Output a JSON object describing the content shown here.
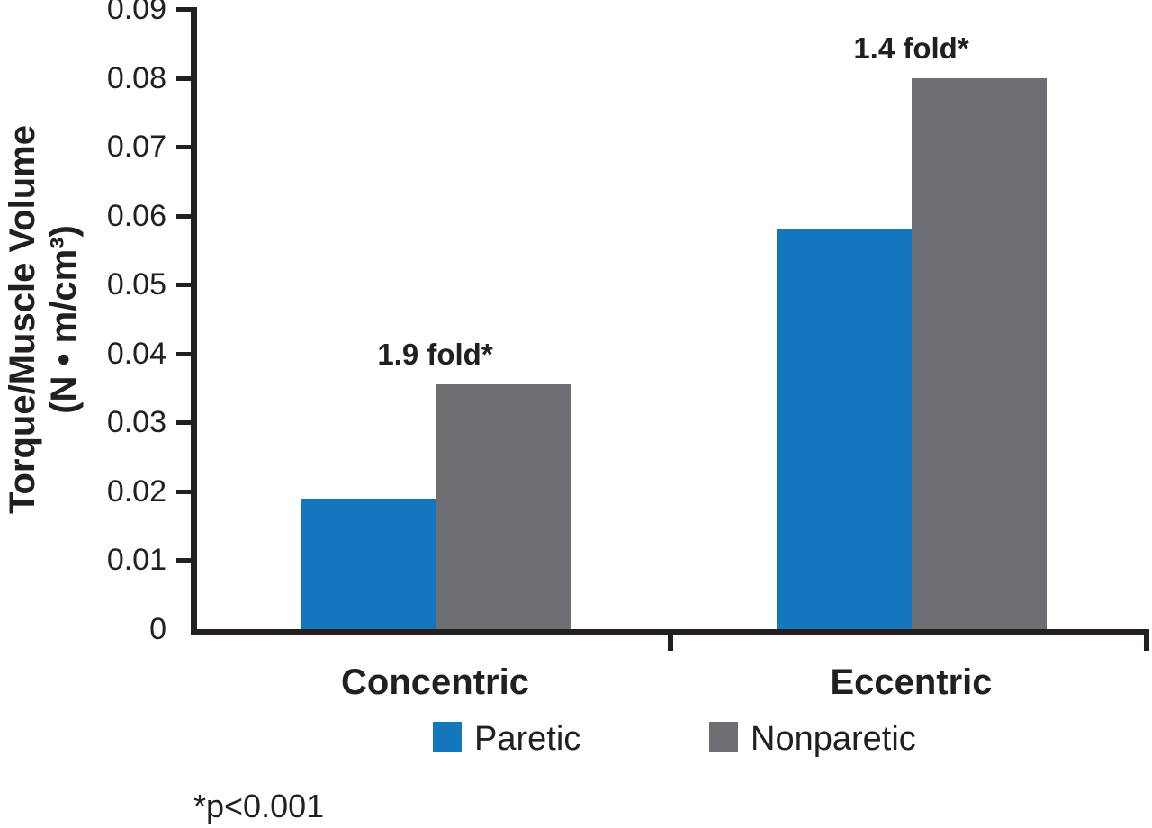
{
  "chart_data": {
    "type": "bar",
    "categories": [
      "Concentric",
      "Eccentric"
    ],
    "series": [
      {
        "name": "Paretic",
        "color": "#1476BC",
        "values": [
          0.019,
          0.058
        ]
      },
      {
        "name": "Nonparetic",
        "color": "#6E6F72",
        "values": [
          0.0355,
          0.08
        ]
      }
    ],
    "annotations": [
      {
        "category": "Concentric",
        "text": "1.9 fold*"
      },
      {
        "category": "Eccentric",
        "text": "1.4 fold*"
      }
    ],
    "ylabel_line1": "Torque/Muscle Volume",
    "ylabel_line2": "(N • m/cm³)",
    "xlabel": "",
    "title": "",
    "ylim": [
      0,
      0.09
    ],
    "yticks": [
      "0",
      "0.01",
      "0.02",
      "0.03",
      "0.04",
      "0.05",
      "0.06",
      "0.07",
      "0.08",
      "0.09"
    ],
    "grid": false,
    "legend_position": "bottom",
    "legend": [
      {
        "label": "Paretic",
        "color": "#1476BC"
      },
      {
        "label": "Nonparetic",
        "color": "#6E6F72"
      }
    ],
    "footnote": "*p<0.001",
    "axis_color": "#231F20",
    "text_color": "#231F20"
  }
}
